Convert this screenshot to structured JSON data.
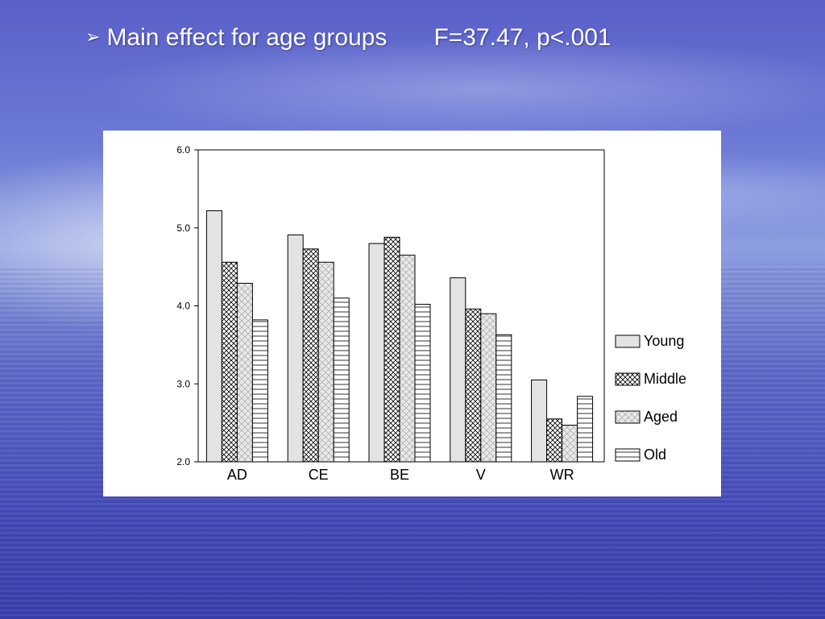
{
  "slide": {
    "bullet": "➢",
    "title": "Main effect for age groups",
    "stat": "F=37.47, p<.001"
  },
  "chart_data": {
    "type": "bar",
    "categories": [
      "AD",
      "CE",
      "BE",
      "V",
      "WR"
    ],
    "series": [
      {
        "name": "Young",
        "values": [
          5.22,
          4.91,
          4.8,
          4.36,
          3.05
        ],
        "pattern": "plain"
      },
      {
        "name": "Middle",
        "values": [
          4.56,
          4.73,
          4.88,
          3.96,
          2.55
        ],
        "pattern": "crosshatch"
      },
      {
        "name": "Aged",
        "values": [
          4.29,
          4.56,
          4.65,
          3.9,
          2.47
        ],
        "pattern": "diamond"
      },
      {
        "name": "Old",
        "values": [
          3.82,
          4.1,
          4.02,
          3.63,
          2.84
        ],
        "pattern": "horizontal"
      }
    ],
    "ylim": [
      2.0,
      6.0
    ],
    "yticks": [
      "2.0",
      "3.0",
      "4.0",
      "5.0",
      "6.0"
    ],
    "xlabel": "",
    "ylabel": "",
    "legend_position": "right",
    "grid": false,
    "colors": {
      "bar_fill": "#e3e3e3",
      "outline": "#000000"
    }
  }
}
